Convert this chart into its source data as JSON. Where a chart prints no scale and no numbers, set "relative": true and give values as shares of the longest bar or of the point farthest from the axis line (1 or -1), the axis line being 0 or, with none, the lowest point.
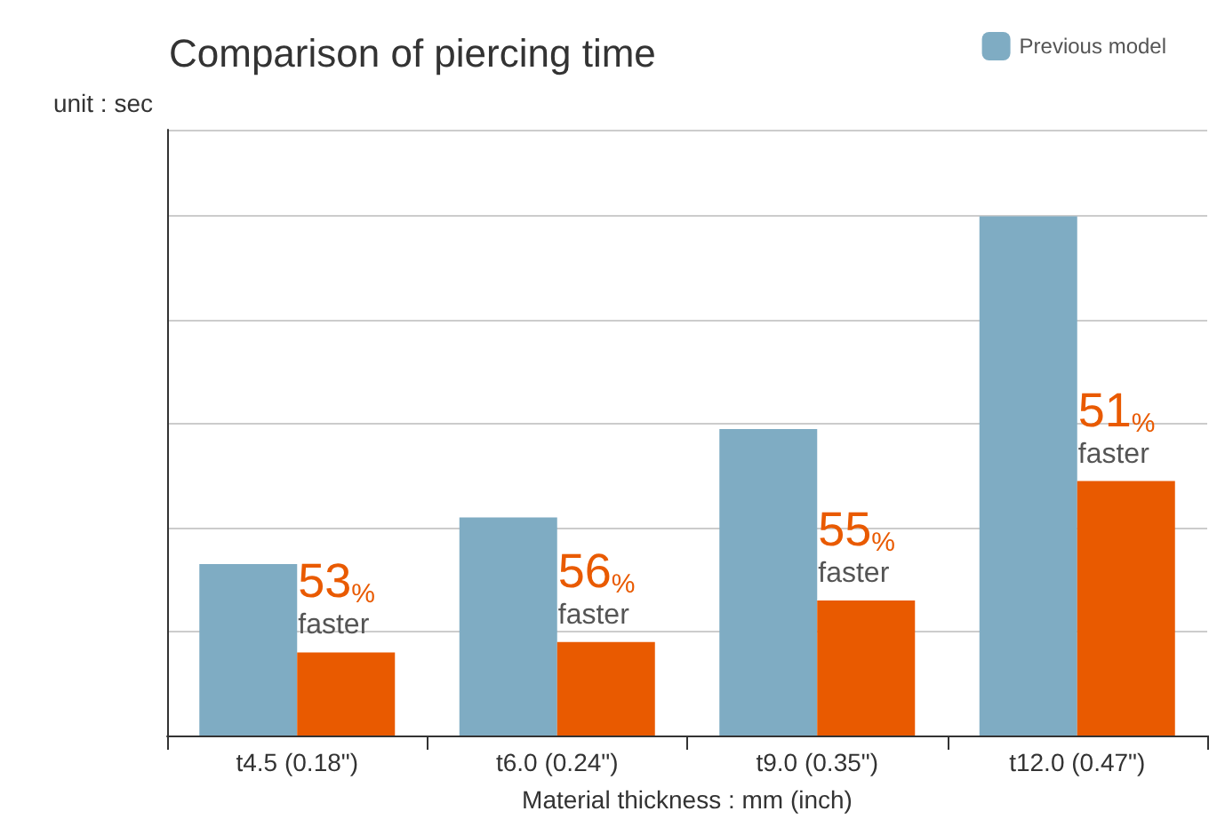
{
  "chart_data": {
    "type": "bar",
    "title": "Comparison of piercing time",
    "ylabel": "unit : sec",
    "xlabel": "Material thickness : mm (inch)",
    "relative": true,
    "grid": "y",
    "legend": "top right",
    "categories": [
      "t4.5 (0.18\")",
      "t6.0 (0.24\")",
      "t9.0 (0.35\")",
      "t12.0 (0.47\")"
    ],
    "series": [
      {
        "name": "Previous model",
        "color": "#7facc3",
        "values": [
          0.33,
          0.42,
          0.59,
          1
        ]
      },
      {
        "color": "#e95a00",
        "values": [
          0.16,
          0.18,
          0.26,
          0.49
        ]
      }
    ],
    "annotations": [
      {
        "text": "53%\nfaster",
        "x": "t4.5 (0.18\")",
        "y": 0.16
      },
      {
        "text": "56%\nfaster",
        "x": "t6.0 (0.24\")",
        "y": 0.18
      },
      {
        "text": "55%\nfaster",
        "x": "t9.0 (0.35\")",
        "y": 0.26
      },
      {
        "text": "51%\nfaster",
        "x": "t12.0 (0.47\")",
        "y": 0.49
      }
    ]
  }
}
